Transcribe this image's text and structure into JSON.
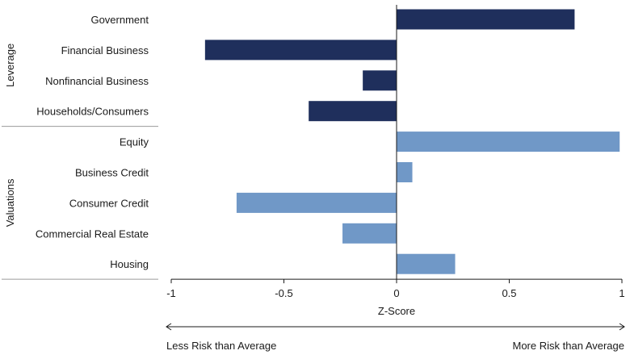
{
  "chart_data": {
    "type": "bar",
    "orientation": "horizontal",
    "groups": [
      {
        "name": "Leverage",
        "color": "#1f2f5c",
        "categories": [
          "Government",
          "Financial Business",
          "Nonfinancial Business",
          "Households/Consumers"
        ],
        "values": [
          0.79,
          -0.85,
          -0.15,
          -0.39
        ]
      },
      {
        "name": "Valuations",
        "color": "#7098c7",
        "categories": [
          "Equity",
          "Business Credit",
          "Consumer Credit",
          "Commercial Real Estate",
          "Housing"
        ],
        "values": [
          0.99,
          0.07,
          -0.71,
          -0.24,
          0.26
        ]
      }
    ],
    "xlabel": "Z-Score",
    "xlim": [
      -1,
      1
    ],
    "xticks": [
      "-1",
      "-0.5",
      "0",
      "0.5",
      "1"
    ],
    "xtick_values": [
      -1,
      -0.5,
      0,
      0.5,
      1
    ],
    "annotation_left": "Less Risk than Average",
    "annotation_right": "More Risk than Average",
    "grid": false
  }
}
